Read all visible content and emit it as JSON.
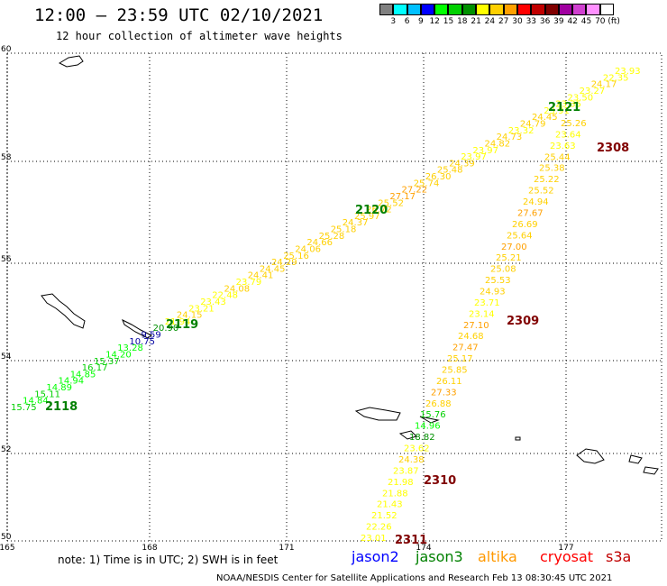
{
  "header": {
    "title": "12:00 – 23:59 UTC 02/10/2021",
    "subtitle": "12 hour collection of altimeter wave heights"
  },
  "legend": {
    "colors": [
      "#808080",
      "#00ffff",
      "#00c0ff",
      "#0000ff",
      "#00ff00",
      "#00d000",
      "#009000",
      "#ffff00",
      "#ffd000",
      "#ffa000",
      "#ff0000",
      "#c00000",
      "#800000",
      "#a000a0",
      "#d040d0",
      "#ff90ff",
      "#ffffff"
    ],
    "labels": [
      "3",
      "6",
      "9",
      "12",
      "15",
      "18",
      "21",
      "24",
      "27",
      "30",
      "33",
      "36",
      "39",
      "42",
      "45",
      "70",
      "(ft)"
    ]
  },
  "axes": {
    "lat_labels": [
      "60",
      "58",
      "56",
      "54",
      "52",
      "50"
    ],
    "lon_labels": [
      "165",
      "168",
      "171",
      "174",
      "177"
    ]
  },
  "tracks": [
    {
      "id": "2118",
      "color": "#008000",
      "label_color": "#008000"
    },
    {
      "id": "2119",
      "color": "#008000",
      "label_color": "#008000"
    },
    {
      "id": "2120",
      "color": "#008000",
      "label_color": "#008000"
    },
    {
      "id": "2121",
      "color": "#008000",
      "label_color": "#008000"
    },
    {
      "id": "2308",
      "color": "#800000",
      "label_color": "#800000"
    },
    {
      "id": "2309",
      "color": "#800000",
      "label_color": "#800000"
    },
    {
      "id": "2310",
      "color": "#800000",
      "label_color": "#800000"
    },
    {
      "id": "2311",
      "color": "#800000",
      "label_color": "#800000"
    }
  ],
  "values_track_a": [
    "15.75",
    "14.84",
    "15.11",
    "14.89",
    "14.94",
    "14.85",
    "16.17",
    "15.37",
    "14.20",
    "13.28",
    "10.75",
    "9.59",
    "20.90",
    "21.94",
    "24.15",
    "23.21",
    "23.43",
    "22.48",
    "24.08",
    "23.79",
    "24.41",
    "24.45",
    "24.29",
    "25.16",
    "24.06",
    "24.66",
    "25.28",
    "25.18",
    "24.37",
    "25.97",
    "26.72",
    "25.52",
    "27.17",
    "27.22",
    "25.74",
    "26.30",
    "25.48",
    "24.39",
    "23.97",
    "23.97",
    "24.82",
    "24.73",
    "23.32",
    "24.79",
    "24.45",
    "23.91",
    "23.35",
    "23.50",
    "23.27",
    "24.17",
    "22.35",
    "23.93"
  ],
  "values_track_b": [
    "25.26",
    "23.64",
    "23.63",
    "25.44",
    "25.38",
    "25.22",
    "25.52",
    "24.94",
    "27.67",
    "26.69",
    "25.64",
    "27.00",
    "25.21",
    "25.08",
    "25.53",
    "24.93",
    "23.71",
    "23.14",
    "27.10",
    "24.68",
    "27.47",
    "25.17",
    "25.85",
    "26.11",
    "27.33",
    "26.88",
    "15.76",
    "14.96",
    "18.82",
    "23.62",
    "24.38",
    "23.87",
    "21.98",
    "21.88",
    "21.43",
    "21.52",
    "22.26",
    "23.01"
  ],
  "satellites": [
    {
      "name": "jason2",
      "color": "#0000ff"
    },
    {
      "name": "jason3",
      "color": "#008000"
    },
    {
      "name": "altika",
      "color": "#ff9900"
    },
    {
      "name": "cryosat",
      "color": "#ff0000"
    },
    {
      "name": "s3a",
      "color": "#c00000"
    }
  ],
  "note": "note: 1) Time is in UTC; 2) SWH is in feet",
  "footer": "NOAA/NESDIS Center for Satellite Applications and Research   Feb 13 08:30:45 UTC 2021"
}
